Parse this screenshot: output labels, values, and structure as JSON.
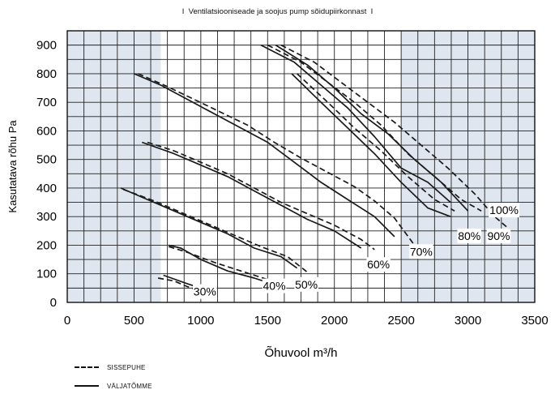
{
  "chart_data": {
    "type": "line",
    "title": "I  Ventilatsiooniseade ja soojus pump sõidupiirkonnast  I",
    "xlabel": "Õhuvool m³/h",
    "ylabel": "Kasutatava rõhu Pa",
    "xlim": [
      0,
      3500
    ],
    "ylim": [
      0,
      950
    ],
    "x_ticks": [
      "0",
      "500",
      "1000",
      "1500",
      "2000",
      "2500",
      "3000",
      "3500"
    ],
    "y_ticks": [
      "0",
      "100",
      "200",
      "300",
      "400",
      "500",
      "600",
      "700",
      "800",
      "900"
    ],
    "grid": true,
    "shaded_x_ranges": [
      [
        0,
        700
      ],
      [
        2500,
        3500
      ]
    ],
    "shade_color": "#dfe6ef",
    "legend": [
      {
        "label": "SISSEPUHE",
        "style": "dashed"
      },
      {
        "label": "VÄLJATÕMME",
        "style": "solid"
      }
    ],
    "series": [
      {
        "name": "30%",
        "style": "solid",
        "points": [
          [
            720,
            95
          ],
          [
            780,
            85
          ],
          [
            900,
            65
          ],
          [
            1000,
            50
          ],
          [
            1100,
            45
          ]
        ]
      },
      {
        "name": "30%",
        "style": "dashed",
        "points": [
          [
            680,
            85
          ],
          [
            800,
            75
          ],
          [
            900,
            55
          ],
          [
            1000,
            40
          ]
        ]
      },
      {
        "name": "40%",
        "style": "solid",
        "points": [
          [
            760,
            200
          ],
          [
            850,
            190
          ],
          [
            1000,
            150
          ],
          [
            1200,
            110
          ],
          [
            1400,
            85
          ],
          [
            1500,
            70
          ]
        ]
      },
      {
        "name": "40%",
        "style": "dashed",
        "points": [
          [
            760,
            195
          ],
          [
            900,
            175
          ],
          [
            1100,
            140
          ],
          [
            1300,
            110
          ],
          [
            1500,
            80
          ]
        ]
      },
      {
        "name": "50%",
        "style": "solid",
        "points": [
          [
            400,
            400
          ],
          [
            600,
            360
          ],
          [
            800,
            320
          ],
          [
            1000,
            280
          ],
          [
            1200,
            240
          ],
          [
            1400,
            190
          ],
          [
            1600,
            160
          ],
          [
            1720,
            120
          ]
        ]
      },
      {
        "name": "50%",
        "style": "dashed",
        "points": [
          [
            420,
            395
          ],
          [
            650,
            355
          ],
          [
            850,
            315
          ],
          [
            1050,
            275
          ],
          [
            1250,
            235
          ],
          [
            1450,
            195
          ],
          [
            1650,
            160
          ],
          [
            1800,
            105
          ]
        ]
      },
      {
        "name": "60%",
        "style": "solid",
        "points": [
          [
            560,
            560
          ],
          [
            800,
            520
          ],
          [
            1000,
            480
          ],
          [
            1200,
            440
          ],
          [
            1400,
            390
          ],
          [
            1600,
            340
          ],
          [
            1800,
            290
          ],
          [
            2000,
            250
          ],
          [
            2200,
            190
          ]
        ]
      },
      {
        "name": "60%",
        "style": "dashed",
        "points": [
          [
            600,
            560
          ],
          [
            800,
            530
          ],
          [
            1000,
            490
          ],
          [
            1200,
            450
          ],
          [
            1400,
            400
          ],
          [
            1600,
            350
          ],
          [
            1800,
            310
          ],
          [
            2000,
            270
          ],
          [
            2200,
            220
          ],
          [
            2300,
            185
          ]
        ]
      },
      {
        "name": "70%",
        "style": "solid",
        "points": [
          [
            500,
            800
          ],
          [
            700,
            760
          ],
          [
            900,
            710
          ],
          [
            1100,
            660
          ],
          [
            1300,
            610
          ],
          [
            1500,
            560
          ],
          [
            1700,
            490
          ],
          [
            1900,
            420
          ],
          [
            2100,
            360
          ],
          [
            2300,
            300
          ],
          [
            2450,
            230
          ]
        ]
      },
      {
        "name": "70%",
        "style": "dashed",
        "points": [
          [
            530,
            800
          ],
          [
            750,
            755
          ],
          [
            950,
            710
          ],
          [
            1150,
            665
          ],
          [
            1350,
            620
          ],
          [
            1550,
            560
          ],
          [
            1750,
            505
          ],
          [
            1950,
            455
          ],
          [
            2150,
            405
          ],
          [
            2300,
            355
          ],
          [
            2450,
            295
          ],
          [
            2600,
            200
          ]
        ]
      },
      {
        "name": "80%",
        "style": "solid",
        "points": [
          [
            1680,
            800
          ],
          [
            1900,
            700
          ],
          [
            2100,
            610
          ],
          [
            2300,
            520
          ],
          [
            2500,
            420
          ],
          [
            2700,
            330
          ],
          [
            2870,
            300
          ]
        ]
      },
      {
        "name": "80%",
        "style": "dashed",
        "points": [
          [
            1720,
            800
          ],
          [
            1950,
            700
          ],
          [
            2150,
            610
          ],
          [
            2350,
            530
          ],
          [
            2550,
            440
          ],
          [
            2750,
            360
          ],
          [
            2900,
            320
          ]
        ]
      },
      {
        "name": "90%",
        "style": "solid",
        "points": [
          [
            1450,
            900
          ],
          [
            1700,
            840
          ],
          [
            1900,
            760
          ],
          [
            2100,
            680
          ],
          [
            2300,
            580
          ],
          [
            2500,
            470
          ],
          [
            2700,
            420
          ],
          [
            2870,
            350
          ]
        ]
      },
      {
        "name": "90%",
        "style": "dashed",
        "points": [
          [
            1500,
            900
          ],
          [
            1750,
            840
          ],
          [
            1950,
            770
          ],
          [
            2150,
            700
          ],
          [
            2350,
            620
          ],
          [
            2550,
            520
          ],
          [
            2750,
            440
          ],
          [
            2950,
            360
          ],
          [
            3100,
            320
          ]
        ]
      },
      {
        "name": "100%",
        "style": "solid",
        "points": [
          [
            1560,
            900
          ],
          [
            1800,
            830
          ],
          [
            2000,
            750
          ],
          [
            2200,
            660
          ],
          [
            2400,
            590
          ],
          [
            2600,
            500
          ],
          [
            2800,
            420
          ],
          [
            3000,
            320
          ]
        ]
      },
      {
        "name": "100%",
        "style": "dashed",
        "points": [
          [
            1600,
            900
          ],
          [
            1850,
            840
          ],
          [
            2050,
            770
          ],
          [
            2250,
            700
          ],
          [
            2450,
            630
          ],
          [
            2650,
            550
          ],
          [
            2850,
            470
          ],
          [
            3050,
            380
          ],
          [
            3200,
            300
          ],
          [
            3300,
            260
          ]
        ]
      }
    ],
    "annotations": [
      {
        "text": "30%",
        "x": 1030,
        "y": 35
      },
      {
        "text": "40%",
        "x": 1550,
        "y": 55
      },
      {
        "text": "50%",
        "x": 1790,
        "y": 60
      },
      {
        "text": "60%",
        "x": 2330,
        "y": 130
      },
      {
        "text": "70%",
        "x": 2650,
        "y": 175
      },
      {
        "text": "80%",
        "x": 3010,
        "y": 230
      },
      {
        "text": "90%",
        "x": 3230,
        "y": 230
      },
      {
        "text": "100%",
        "x": 3270,
        "y": 320
      }
    ]
  }
}
